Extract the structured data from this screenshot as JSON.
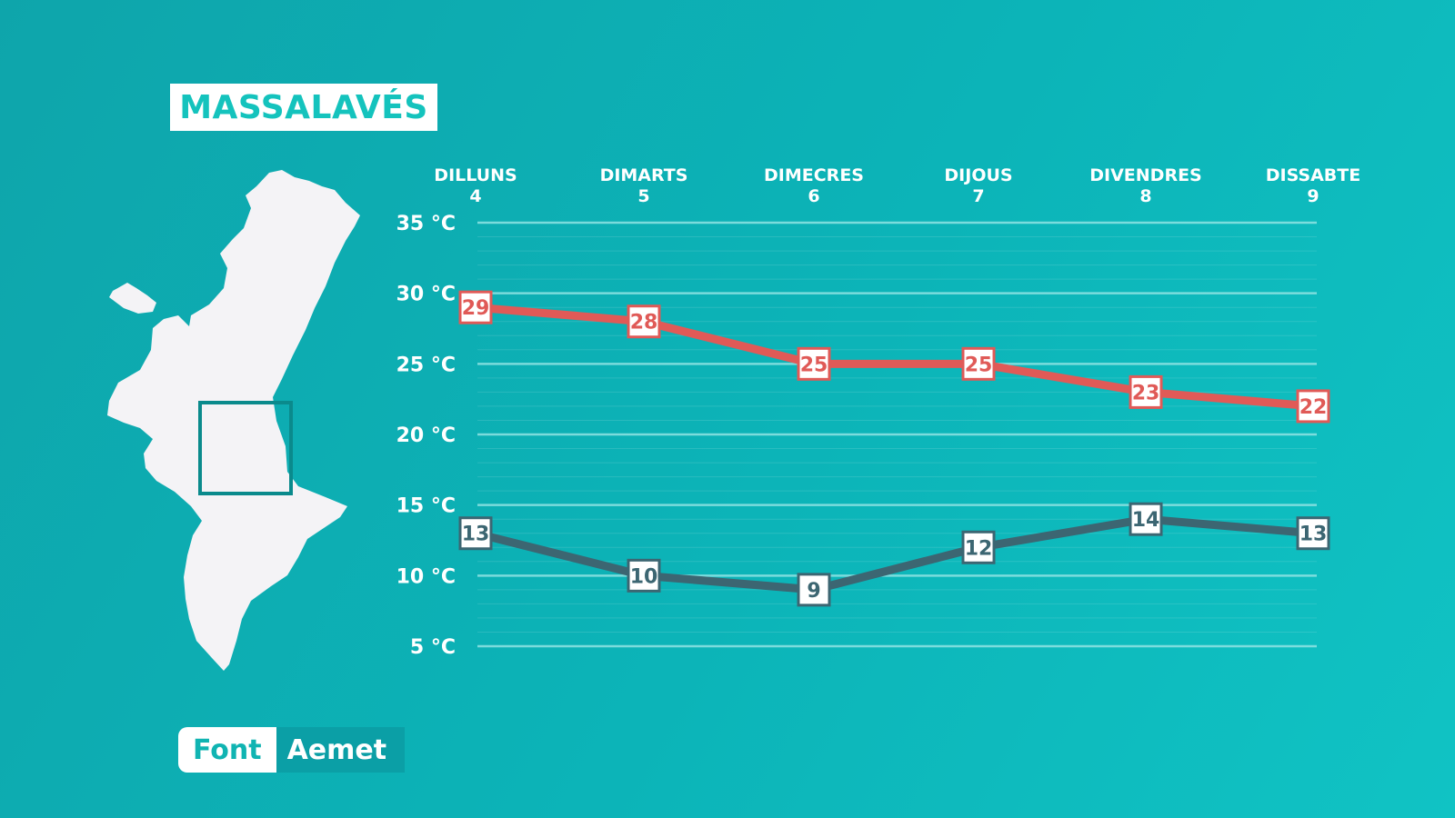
{
  "location_title": "MASSALAVÉS",
  "source": {
    "label": "Font",
    "value": "Aemet"
  },
  "colors": {
    "max": "#e05a57",
    "min": "#3c6672",
    "background": "#0cb4b8",
    "accent": "#14c3bd"
  },
  "chart_data": {
    "type": "line",
    "categories": [
      {
        "day": "DILLUNS",
        "date": "4"
      },
      {
        "day": "DIMARTS",
        "date": "5"
      },
      {
        "day": "DIMECRES",
        "date": "6"
      },
      {
        "day": "DIJOUS",
        "date": "7"
      },
      {
        "day": "DIVENDRES",
        "date": "8"
      },
      {
        "day": "DISSABTE",
        "date": "9"
      }
    ],
    "series": [
      {
        "key": "max",
        "values": [
          29,
          28,
          25,
          25,
          23,
          22
        ]
      },
      {
        "key": "min",
        "values": [
          13,
          10,
          9,
          12,
          14,
          13
        ]
      }
    ],
    "y_ticks": [
      {
        "value": 35,
        "label": "35 °C"
      },
      {
        "value": 30,
        "label": "30 °C"
      },
      {
        "value": 25,
        "label": "25 °C"
      },
      {
        "value": 20,
        "label": "20 °C"
      },
      {
        "value": 15,
        "label": "15 °C"
      },
      {
        "value": 10,
        "label": "10 °C"
      },
      {
        "value": 5,
        "label": "5 °C"
      }
    ],
    "ylim": [
      5,
      35
    ],
    "grid": true
  }
}
